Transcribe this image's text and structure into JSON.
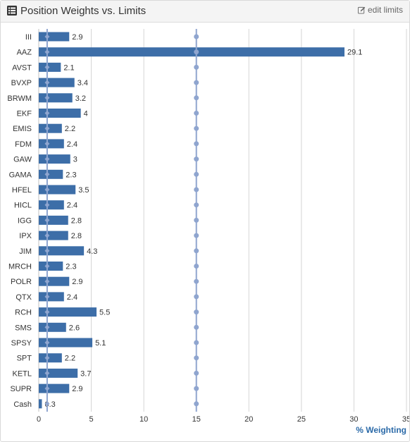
{
  "header": {
    "title": "Position Weights vs. Limits",
    "edit_label": "edit limits",
    "title_icon": "list-icon",
    "edit_icon": "pencil-square-icon"
  },
  "colors": {
    "bar": "#3d6ea8",
    "limit": "#8fa5cf",
    "grid": "#d6d6d6",
    "axis_title": "#2b6aa8"
  },
  "chart_data": {
    "type": "bar",
    "orientation": "horizontal",
    "title": "",
    "xlabel": "% Weighting",
    "ylabel": "",
    "xlim": [
      0,
      35
    ],
    "xticks": [
      0,
      5,
      10,
      15,
      20,
      25,
      30,
      35
    ],
    "grid": true,
    "categories": [
      "III",
      "AAZ",
      "AVST",
      "BVXP",
      "BRWM",
      "EKF",
      "EMIS",
      "FDM",
      "GAW",
      "GAMA",
      "HFEL",
      "HICL",
      "IGG",
      "IPX",
      "JIM",
      "MRCH",
      "POLR",
      "QTX",
      "RCH",
      "SMS",
      "SPSY",
      "SPT",
      "KETL",
      "SUPR",
      "Cash"
    ],
    "values": [
      2.9,
      29.1,
      2.1,
      3.4,
      3.2,
      4,
      2.2,
      2.4,
      3,
      2.3,
      3.5,
      2.4,
      2.8,
      2.8,
      4.3,
      2.3,
      2.9,
      2.4,
      5.5,
      2.6,
      5.1,
      2.2,
      3.7,
      2.9,
      0.3
    ],
    "value_labels": [
      "2.9",
      "29.1",
      "2.1",
      "3.4",
      "3.2",
      "4",
      "2.2",
      "2.4",
      "3",
      "2.3",
      "3.5",
      "2.4",
      "2.8",
      "2.8",
      "4.3",
      "2.3",
      "2.9",
      "2.4",
      "5.5",
      "2.6",
      "5.1",
      "2.2",
      "3.7",
      "2.9",
      "0.3"
    ],
    "limit_lines": [
      {
        "value": 0.8,
        "marker": "diamond"
      },
      {
        "value": 15,
        "marker": "circle"
      }
    ]
  }
}
